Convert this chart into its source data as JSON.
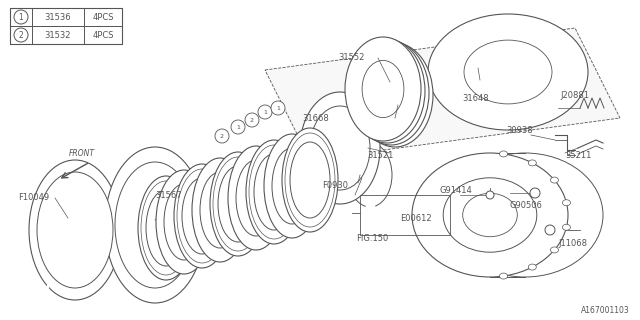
{
  "background_color": "#ffffff",
  "part_color": "#555555",
  "diagram_id": "A167001103",
  "legend": [
    {
      "symbol": "1",
      "part_no": "31536",
      "qty": "4PCS"
    },
    {
      "symbol": "2",
      "part_no": "31532",
      "qty": "4PCS"
    }
  ]
}
